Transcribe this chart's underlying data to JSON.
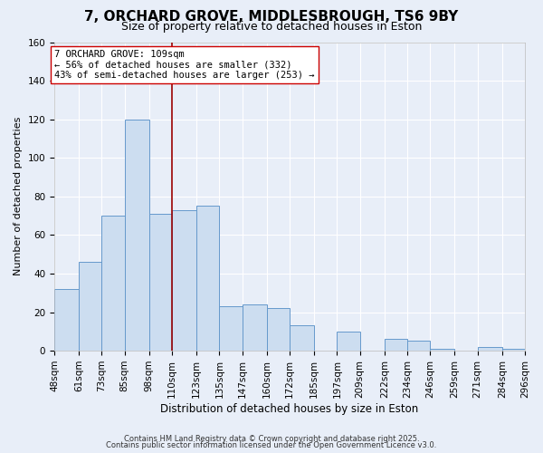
{
  "title": "7, ORCHARD GROVE, MIDDLESBROUGH, TS6 9BY",
  "subtitle": "Size of property relative to detached houses in Eston",
  "xlabel": "Distribution of detached houses by size in Eston",
  "ylabel": "Number of detached properties",
  "bins": [
    48,
    61,
    73,
    85,
    98,
    110,
    123,
    135,
    147,
    160,
    172,
    185,
    197,
    209,
    222,
    234,
    246,
    259,
    271,
    284,
    296
  ],
  "counts": [
    32,
    46,
    70,
    120,
    71,
    73,
    75,
    23,
    24,
    22,
    13,
    0,
    10,
    0,
    6,
    5,
    1,
    0,
    2,
    1
  ],
  "bar_color": "#ccddf0",
  "bar_edge_color": "#6699cc",
  "vline_x": 110,
  "vline_color": "#990000",
  "vline_lw": 1.2,
  "ylim": [
    0,
    160
  ],
  "yticks": [
    0,
    20,
    40,
    60,
    80,
    100,
    120,
    140,
    160
  ],
  "annotation_text": "7 ORCHARD GROVE: 109sqm\n← 56% of detached houses are smaller (332)\n43% of semi-detached houses are larger (253) →",
  "annotation_box_color": "white",
  "annotation_box_edge_color": "#cc0000",
  "footer1": "Contains HM Land Registry data © Crown copyright and database right 2025.",
  "footer2": "Contains public sector information licensed under the Open Government Licence v3.0.",
  "background_color": "#e8eef8",
  "plot_bg_color": "#e8eef8",
  "grid_color": "#ffffff",
  "title_fontsize": 11,
  "subtitle_fontsize": 9,
  "xlabel_fontsize": 8.5,
  "ylabel_fontsize": 8,
  "tick_fontsize": 7.5,
  "annotation_fontsize": 7.5,
  "footer_fontsize": 6.0
}
